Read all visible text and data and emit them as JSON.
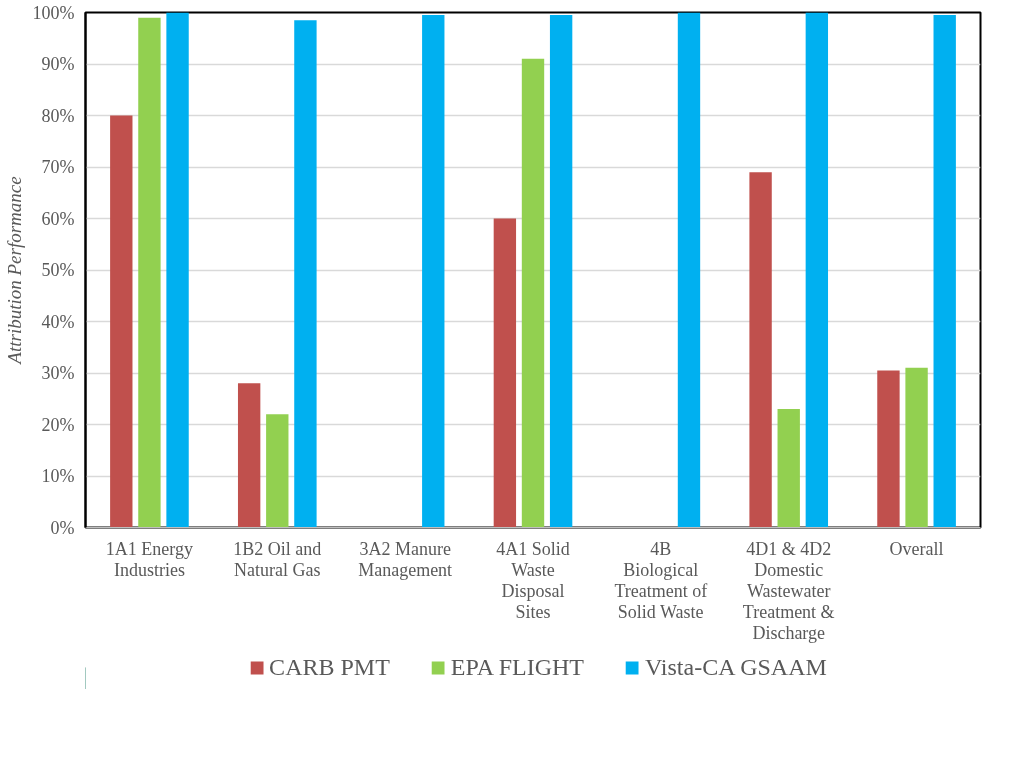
{
  "chart_data": {
    "type": "bar",
    "ylabel": "Attribution Performance",
    "categories": [
      "1A1 Energy Industries",
      "1B2 Oil and Natural Gas",
      "3A2 Manure Management",
      "4A1 Solid Waste Disposal Sites",
      "4B Biological Treatment of Solid Waste",
      "4D1 & 4D2 Domestic Wastewater Treatment & Discharge",
      "Overall"
    ],
    "series": [
      {
        "name": "CARB PMT",
        "color": "#c0504d",
        "values": [
          80,
          28,
          null,
          60,
          null,
          69,
          30.5
        ]
      },
      {
        "name": "EPA FLIGHT",
        "color": "#92d050",
        "values": [
          99,
          22,
          null,
          91,
          null,
          23,
          31
        ]
      },
      {
        "name": "Vista-CA GSAAM",
        "color": "#00b0f0",
        "values": [
          100,
          98.5,
          99.5,
          99.5,
          100,
          100,
          99.5
        ]
      }
    ],
    "ylim": [
      0,
      100
    ],
    "yticks": [
      {
        "value": 0,
        "label": "0%"
      },
      {
        "value": 10,
        "label": "10%"
      },
      {
        "value": 20,
        "label": "20%"
      },
      {
        "value": 30,
        "label": "30%"
      },
      {
        "value": 40,
        "label": "40%"
      },
      {
        "value": 50,
        "label": "50%"
      },
      {
        "value": 60,
        "label": "60%"
      },
      {
        "value": 70,
        "label": "70%"
      },
      {
        "value": 80,
        "label": "80%"
      },
      {
        "value": 90,
        "label": "90%"
      },
      {
        "value": 100,
        "label": "100%"
      }
    ],
    "grid": "y",
    "legend": "bottom"
  }
}
